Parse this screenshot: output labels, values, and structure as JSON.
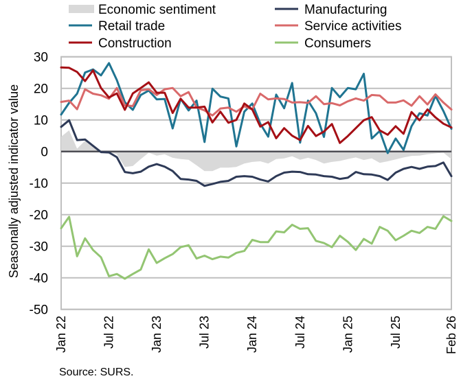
{
  "chart_data": {
    "type": "line",
    "title": "",
    "xlabel": "",
    "ylabel": "Seasonally adjusted indicator value",
    "ylim": [
      -50,
      30
    ],
    "yticks": [
      30,
      20,
      10,
      0,
      -10,
      -20,
      -30,
      -40,
      -50
    ],
    "grid": true,
    "legend_position": "top",
    "x_start": "Jan 22",
    "x_end": "Feb 26",
    "x_tick_labels": [
      {
        "index": 0,
        "label": "Jan 22"
      },
      {
        "index": 6,
        "label": "Jul 22"
      },
      {
        "index": 12,
        "label": "Jan 23"
      },
      {
        "index": 18,
        "label": "Jul 23"
      },
      {
        "index": 24,
        "label": "Jan 24"
      },
      {
        "index": 30,
        "label": "Jul 24"
      },
      {
        "index": 36,
        "label": "Jan 25"
      },
      {
        "index": 42,
        "label": "Jul 25"
      },
      {
        "index": 49,
        "label": "Feb 26"
      }
    ],
    "series": [
      {
        "name": "Economic sentiment",
        "kind": "area",
        "color": "#d9d9d9",
        "values": [
          4.7,
          6.7,
          0.9,
          3.4,
          1.6,
          -0.1,
          -0.2,
          -0.9,
          -4.9,
          -4.6,
          -2.4,
          -0.4,
          -1.3,
          -0.9,
          -2.0,
          -2.4,
          -2.6,
          -4.4,
          -6.2,
          -6.2,
          -5.1,
          -5.1,
          -4.9,
          -3.8,
          -3.3,
          -3.1,
          -3.8,
          -2.4,
          -2.2,
          -1.5,
          -2.6,
          -2.0,
          -2.7,
          -3.8,
          -3.3,
          -3.0,
          -2.4,
          -1.9,
          -2.7,
          -2.2,
          -3.6,
          -3.1,
          -2.5,
          -1.9,
          -1.4,
          -1.3,
          -0.9,
          -0.6,
          -0.4,
          -2.4
        ]
      },
      {
        "name": "Manufacturing",
        "kind": "line",
        "color": "#2e3a57",
        "values": [
          7.8,
          9.9,
          3.6,
          3.8,
          1.8,
          -0.2,
          -0.3,
          -1.8,
          -6.5,
          -6.9,
          -6.4,
          -4.8,
          -4.0,
          -4.8,
          -6.2,
          -8.7,
          -8.9,
          -9.3,
          -10.9,
          -10.3,
          -9.6,
          -9.3,
          -8.0,
          -7.8,
          -8.0,
          -8.9,
          -9.5,
          -7.8,
          -6.7,
          -6.4,
          -6.5,
          -7.2,
          -7.3,
          -7.8,
          -8.0,
          -8.7,
          -8.3,
          -6.5,
          -7.2,
          -7.3,
          -7.8,
          -9.0,
          -6.7,
          -5.5,
          -4.9,
          -5.5,
          -4.8,
          -4.6,
          -3.5,
          -7.8
        ]
      },
      {
        "name": "Retail trade",
        "kind": "line",
        "color": "#1f7491",
        "values": [
          11.7,
          15.4,
          18.3,
          25.0,
          26.0,
          24.1,
          28.0,
          22.6,
          15.6,
          13.2,
          17.9,
          19.3,
          16.5,
          16.6,
          7.3,
          16.7,
          13.0,
          16.1,
          3.0,
          19.9,
          17.4,
          16.8,
          1.6,
          12.6,
          15.2,
          8.8,
          4.7,
          18.0,
          13.7,
          21.7,
          2.8,
          16.1,
          12.1,
          4.6,
          20.1,
          17.2,
          20.1,
          19.7,
          24.6,
          4.1,
          6.5,
          -0.5,
          4.1,
          0.5,
          8.0,
          12.1,
          11.4,
          17.6,
          12.8,
          7.2
        ]
      },
      {
        "name": "Service activities",
        "kind": "line",
        "color": "#d9696a",
        "values": [
          15.7,
          16.1,
          13.4,
          19.7,
          18.3,
          17.8,
          16.7,
          20.1,
          14.6,
          14.4,
          19.4,
          19.7,
          17.9,
          19.7,
          20.1,
          17.5,
          18.8,
          14.0,
          13.0,
          11.4,
          13.6,
          13.9,
          12.6,
          14.3,
          13.3,
          18.3,
          16.5,
          16.8,
          16.6,
          15.5,
          15.6,
          15.4,
          17.5,
          15.0,
          15.3,
          14.6,
          15.9,
          16.8,
          16.1,
          17.9,
          17.7,
          15.5,
          15.5,
          16.2,
          14.5,
          17.5,
          14.9,
          18.1,
          15.5,
          13.3
        ]
      },
      {
        "name": "Construction",
        "kind": "line",
        "color": "#a50f15",
        "values": [
          26.6,
          26.5,
          25.2,
          22.3,
          25.7,
          20.1,
          17.1,
          18.4,
          13.2,
          18.4,
          20.1,
          21.9,
          18.6,
          18.6,
          12.2,
          16.7,
          13.9,
          13.9,
          14.2,
          9.2,
          12.6,
          9.1,
          10.0,
          15.2,
          13.3,
          7.9,
          9.3,
          4.2,
          7.4,
          5.0,
          3.6,
          8.1,
          4.9,
          6.3,
          8.7,
          2.7,
          4.9,
          7.4,
          9.9,
          10.9,
          6.7,
          5.3,
          8.0,
          5.6,
          12.5,
          9.9,
          13.3,
          10.8,
          8.8,
          7.6
        ]
      },
      {
        "name": "Consumers",
        "kind": "line",
        "color": "#93c572",
        "values": [
          -24.3,
          -20.7,
          -33.2,
          -27.5,
          -31.2,
          -33.5,
          -39.5,
          -38.8,
          -40.3,
          -38.8,
          -37.4,
          -31.0,
          -35.3,
          -33.8,
          -32.5,
          -30.3,
          -29.7,
          -33.9,
          -33.0,
          -34.1,
          -33.3,
          -33.6,
          -32.1,
          -31.5,
          -28.0,
          -28.7,
          -28.7,
          -25.3,
          -25.6,
          -23.2,
          -24.5,
          -24.3,
          -28.3,
          -29.0,
          -30.3,
          -26.7,
          -28.6,
          -31.2,
          -27.7,
          -29.2,
          -23.9,
          -25.1,
          -28.1,
          -26.7,
          -25.1,
          -25.8,
          -23.9,
          -24.5,
          -20.5,
          -22.0
        ]
      }
    ],
    "legend": [
      {
        "label": "Economic sentiment",
        "swatch": "box",
        "color": "#d9d9d9"
      },
      {
        "label": "Manufacturing",
        "swatch": "line",
        "color": "#2e3a57"
      },
      {
        "label": "Retail trade",
        "swatch": "line",
        "color": "#1f7491"
      },
      {
        "label": "Service activities",
        "swatch": "line",
        "color": "#d9696a"
      },
      {
        "label": "Construction",
        "swatch": "line",
        "color": "#a50f15"
      },
      {
        "label": "Consumers",
        "swatch": "line",
        "color": "#93c572"
      }
    ],
    "source_note": "Source: SURS."
  },
  "colors": {
    "gridline": "#bfbfbf",
    "zero_line": "#4d4d54",
    "frame": "#bfbfbf"
  }
}
